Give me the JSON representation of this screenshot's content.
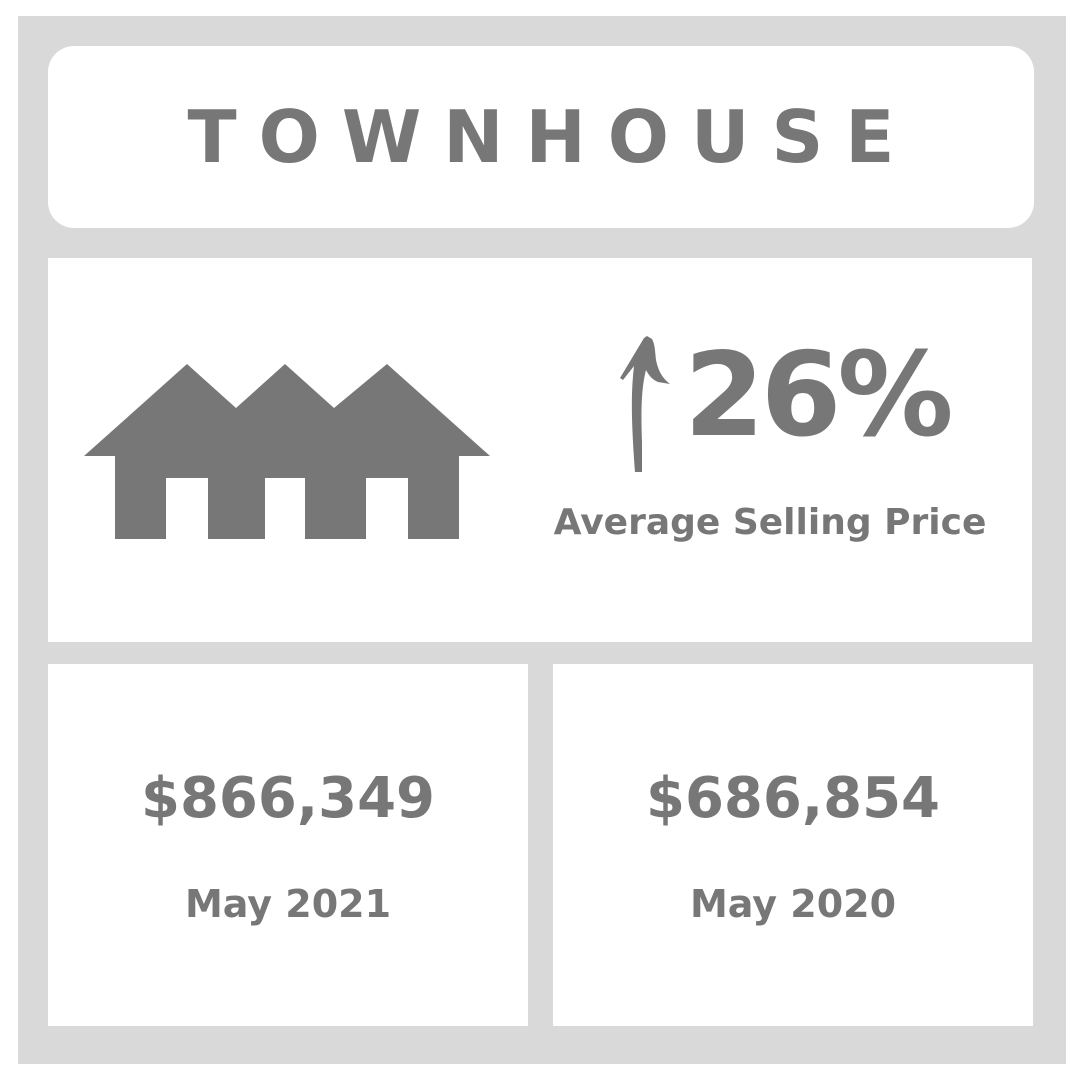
{
  "header": {
    "title": "TOWNHOUSE"
  },
  "stat": {
    "change": "26%",
    "direction": "up",
    "label": "Average Selling Price"
  },
  "prices": [
    {
      "value": "$866,349",
      "period": "May 2021"
    },
    {
      "value": "$686,854",
      "period": "May 2020"
    }
  ],
  "icons": {
    "building": "townhouse-icon",
    "trend": "arrow-up-icon"
  },
  "colors": {
    "frame": "#d9d9d9",
    "panel": "#ffffff",
    "text": "#777777"
  }
}
